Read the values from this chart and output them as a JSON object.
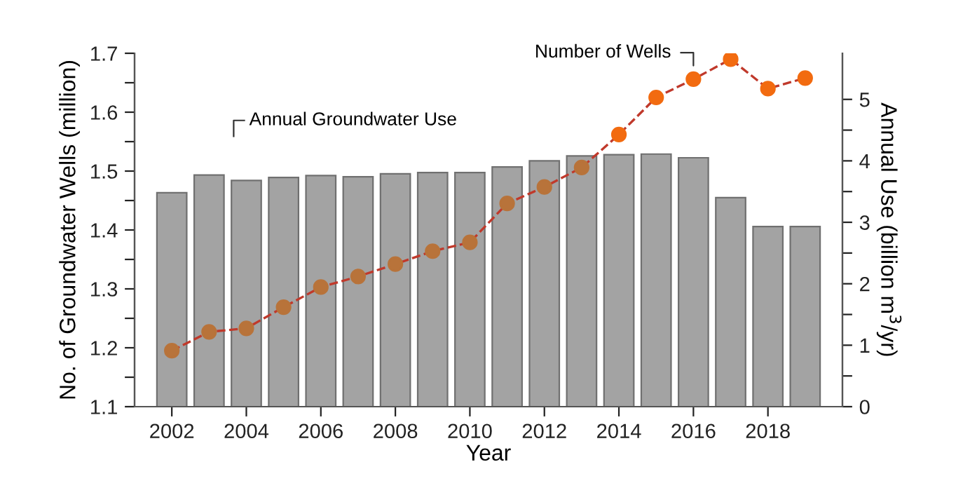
{
  "chart_data": {
    "type": "bar",
    "xlabel": "Year",
    "ylabel": "No. of Groundwater Wells (million)",
    "y2label": "Annual Use (billion m$^{3}$/yr)",
    "x": [
      2002,
      2003,
      2004,
      2005,
      2006,
      2007,
      2008,
      2009,
      2010,
      2011,
      2012,
      2013,
      2014,
      2015,
      2016,
      2017,
      2018,
      2019
    ],
    "series": [
      {
        "axis": "y2",
        "color": "#a3a3a3",
        "values": [
          3.48,
          3.77,
          3.68,
          3.73,
          3.76,
          3.74,
          3.79,
          3.81,
          3.81,
          3.9,
          4.0,
          4.08,
          4.1,
          4.11,
          4.05,
          3.4,
          2.93,
          2.93
        ]
      },
      {
        "type": "line",
        "color": "#c0392b",
        "line_style": "dashed",
        "marker": "circle",
        "colors": [
          "#b8733a",
          "#b8733a",
          "#b8733a",
          "#b8733a",
          "#b8733a",
          "#b8733a",
          "#b8733a",
          "#b8733a",
          "#b8733a",
          "#b8733a",
          "#b8733a",
          "#b8733a",
          "#f26b10",
          "#f26b10",
          "#f26b10",
          "#f26b10",
          "#f26b10",
          "#f26b10"
        ],
        "values": [
          1.195,
          1.227,
          1.233,
          1.269,
          1.303,
          1.321,
          1.342,
          1.364,
          1.379,
          1.445,
          1.473,
          1.506,
          1.562,
          1.625,
          1.656,
          1.69,
          1.64,
          1.658
        ]
      }
    ],
    "annotations": [
      "Annual Groundwater Use",
      {
        "text": "Number of Wells",
        "x": 2016,
        "y": 1.656
      }
    ],
    "xlim": [
      2001,
      2020
    ],
    "xticks": [
      2002,
      2004,
      2006,
      2008,
      2010,
      2012,
      2014,
      2016,
      2018
    ],
    "ylim": [
      1.1,
      1.7
    ],
    "yticks": [
      1.1,
      {
        "value": 1.15,
        "label": null
      },
      1.2,
      {
        "value": 1.25,
        "label": null
      },
      1.3,
      {
        "value": 1.35,
        "label": null
      },
      1.4,
      {
        "value": 1.45,
        "label": null
      },
      1.5,
      {
        "value": 1.55,
        "label": null
      },
      1.6,
      {
        "value": 1.65,
        "label": null
      },
      1.7
    ],
    "y2lim": [
      0,
      5.75
    ],
    "y2ticks": [
      0,
      {
        "value": 0.5,
        "label": null
      },
      1,
      {
        "value": 1.5,
        "label": null
      },
      2,
      {
        "value": 2.5,
        "label": null
      },
      3,
      {
        "value": 3.5,
        "label": null
      },
      4,
      {
        "value": 4.5,
        "label": null
      },
      5
    ],
    "grid": false
  }
}
